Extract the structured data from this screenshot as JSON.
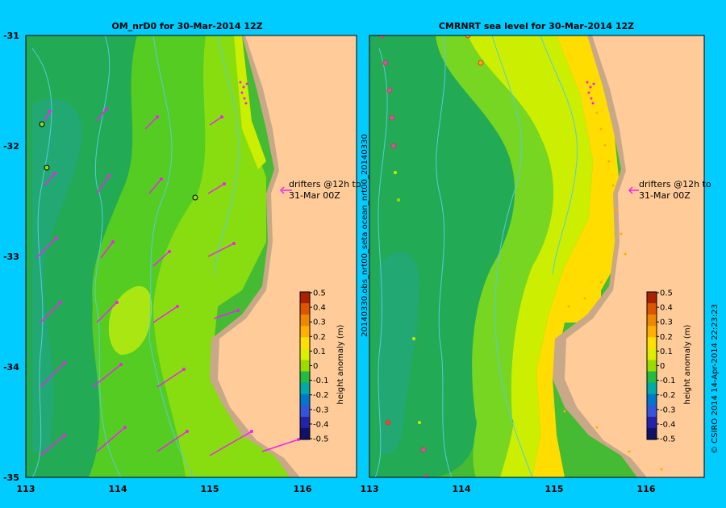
{
  "left_panel": {
    "title": "OM_nrD0 for 30-Mar-2014 12Z",
    "drifter_note_line1": "drifters @12h to",
    "drifter_note_line2": "31-Mar 00Z"
  },
  "right_panel": {
    "title": "CMRNRT sea level  for 30-Mar-2014 12Z",
    "drifter_note_line1": "drifters @12h to",
    "drifter_note_line2": "31-Mar 00Z",
    "side_label": "20140330.obs_nrt00_seta    ocean_nrt00_20140330"
  },
  "axes": {
    "x_ticks": [
      "113",
      "114",
      "115",
      "116"
    ],
    "y_ticks": [
      "-31",
      "-32",
      "-33",
      "-34",
      "-35"
    ]
  },
  "colorbar": {
    "label": "height anomaly (m)",
    "ticks": [
      "0.5",
      "0.4",
      "0.3",
      "0.2",
      "0.1",
      "0",
      "-0.1",
      "-0.2",
      "-0.3",
      "-0.4",
      "-0.5"
    ],
    "colors": [
      "#aa2200",
      "#dd5500",
      "#ee8800",
      "#ffb000",
      "#ffe000",
      "#ddee00",
      "#99dd00",
      "#22bb44",
      "#00aaaa",
      "#0077cc",
      "#3355dd",
      "#2222aa",
      "#111166"
    ]
  },
  "credit": "© CSIRO 2014   14-Apr-2014 22:23:23",
  "colors": {
    "background": "#00ccff",
    "land": "#ffcc99",
    "shelf": "#c8a888",
    "arrow": "#ee22ee",
    "isobath": "#55ccdd"
  }
}
